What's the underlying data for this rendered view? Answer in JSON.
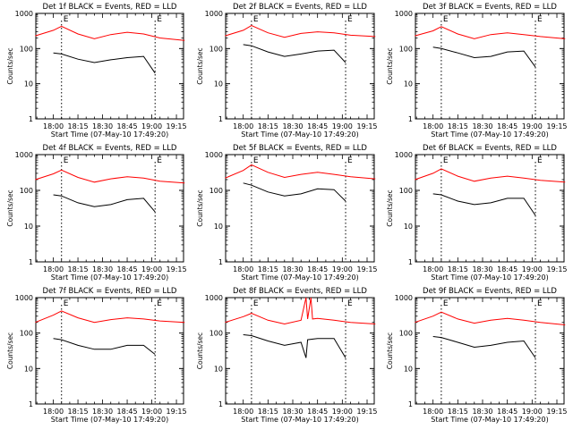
{
  "chart_data": [
    {
      "type": "line",
      "title": "Det 1f BLACK = Events, RED = LLD",
      "ylabel": "Counts/sec",
      "xlabel": "Start Time (07-May-10 17:49:20)",
      "x_ticks": [
        "18:00",
        "18:15",
        "18:30",
        "18:45",
        "19:00",
        "19:15"
      ],
      "y_ticks": [
        "1",
        "10",
        "100",
        "1000"
      ],
      "ylim": [
        1,
        1000
      ],
      "y_scale": "log",
      "grid": false,
      "markers": {
        "start_label": "E",
        "end_label": "E",
        "start_time": "18:05",
        "end_time": "19:02"
      },
      "series": [
        {
          "color": "#ff0000",
          "x": [
            "17:49",
            "18:00",
            "18:05",
            "18:15",
            "18:25",
            "18:35",
            "18:45",
            "18:55",
            "19:05",
            "19:20"
          ],
          "values": [
            230,
            330,
            430,
            260,
            190,
            250,
            290,
            260,
            200,
            170
          ]
        },
        {
          "color": "#000000",
          "x": [
            "18:00",
            "18:05",
            "18:15",
            "18:25",
            "18:35",
            "18:45",
            "18:55",
            "19:02"
          ],
          "values": [
            75,
            70,
            50,
            40,
            48,
            55,
            60,
            20
          ]
        }
      ]
    },
    {
      "type": "line",
      "title": "Det 2f BLACK = Events, RED = LLD",
      "ylabel": "Counts/sec",
      "xlabel": "Start Time (07-May-10 17:49:20)",
      "x_ticks": [
        "18:00",
        "18:15",
        "18:30",
        "18:45",
        "19:00",
        "19:15"
      ],
      "y_ticks": [
        "1",
        "10",
        "100",
        "1000"
      ],
      "ylim": [
        1,
        1000
      ],
      "y_scale": "log",
      "grid": false,
      "markers": {
        "start_label": "E",
        "end_label": "E",
        "start_time": "18:05",
        "end_time": "19:02"
      },
      "series": [
        {
          "color": "#ff0000",
          "x": [
            "17:49",
            "18:00",
            "18:05",
            "18:15",
            "18:25",
            "18:35",
            "18:45",
            "18:55",
            "19:05",
            "19:20"
          ],
          "values": [
            230,
            330,
            450,
            280,
            210,
            270,
            300,
            280,
            240,
            220
          ]
        },
        {
          "color": "#000000",
          "x": [
            "18:00",
            "18:05",
            "18:15",
            "18:25",
            "18:35",
            "18:45",
            "18:55",
            "19:02"
          ],
          "values": [
            130,
            120,
            80,
            60,
            70,
            85,
            90,
            40
          ]
        }
      ]
    },
    {
      "type": "line",
      "title": "Det 3f BLACK = Events, RED = LLD",
      "ylabel": "Counts/sec",
      "xlabel": "Start Time (07-May-10 17:49:20)",
      "x_ticks": [
        "18:00",
        "18:15",
        "18:30",
        "18:45",
        "19:00",
        "19:15"
      ],
      "y_ticks": [
        "1",
        "10",
        "100",
        "1000"
      ],
      "ylim": [
        1,
        1000
      ],
      "y_scale": "log",
      "grid": false,
      "markers": {
        "start_label": "E",
        "end_label": "E",
        "start_time": "18:05",
        "end_time": "19:02"
      },
      "series": [
        {
          "color": "#ff0000",
          "x": [
            "17:49",
            "18:00",
            "18:05",
            "18:15",
            "18:25",
            "18:35",
            "18:45",
            "18:55",
            "19:05",
            "19:20"
          ],
          "values": [
            230,
            320,
            420,
            260,
            190,
            250,
            280,
            250,
            220,
            190
          ]
        },
        {
          "color": "#000000",
          "x": [
            "18:00",
            "18:05",
            "18:15",
            "18:25",
            "18:35",
            "18:45",
            "18:55",
            "19:02"
          ],
          "values": [
            110,
            100,
            75,
            55,
            60,
            80,
            85,
            30
          ]
        }
      ]
    },
    {
      "type": "line",
      "title": "Det 4f BLACK = Events, RED = LLD",
      "ylabel": "Counts/sec",
      "xlabel": "Start Time (07-May-10 17:49:20)",
      "x_ticks": [
        "18:00",
        "18:15",
        "18:30",
        "18:45",
        "19:00",
        "19:15"
      ],
      "y_ticks": [
        "1",
        "10",
        "100",
        "1000"
      ],
      "ylim": [
        1,
        1000
      ],
      "y_scale": "log",
      "grid": false,
      "markers": {
        "start_label": "E",
        "end_label": "E",
        "start_time": "18:05",
        "end_time": "19:02"
      },
      "series": [
        {
          "color": "#ff0000",
          "x": [
            "17:49",
            "18:00",
            "18:05",
            "18:15",
            "18:25",
            "18:35",
            "18:45",
            "18:55",
            "19:05",
            "19:20"
          ],
          "values": [
            200,
            290,
            370,
            230,
            170,
            210,
            240,
            220,
            180,
            160
          ]
        },
        {
          "color": "#000000",
          "x": [
            "18:00",
            "18:05",
            "18:15",
            "18:25",
            "18:35",
            "18:45",
            "18:55",
            "19:02"
          ],
          "values": [
            75,
            70,
            45,
            35,
            40,
            55,
            60,
            25
          ]
        }
      ]
    },
    {
      "type": "line",
      "title": "Det 5f BLACK = Events, RED = LLD",
      "ylabel": "Counts/sec",
      "xlabel": "Start Time (07-May-10 17:49:20)",
      "x_ticks": [
        "18:00",
        "18:15",
        "18:30",
        "18:45",
        "19:00",
        "19:15"
      ],
      "y_ticks": [
        "1",
        "10",
        "100",
        "1000"
      ],
      "ylim": [
        1,
        1000
      ],
      "y_scale": "log",
      "grid": false,
      "markers": {
        "start_label": "E",
        "end_label": "E",
        "start_time": "18:05",
        "end_time": "19:02"
      },
      "series": [
        {
          "color": "#ff0000",
          "x": [
            "17:49",
            "18:00",
            "18:05",
            "18:15",
            "18:25",
            "18:35",
            "18:45",
            "18:55",
            "19:05",
            "19:20"
          ],
          "values": [
            220,
            360,
            520,
            320,
            230,
            280,
            320,
            280,
            240,
            210
          ]
        },
        {
          "color": "#000000",
          "x": [
            "18:00",
            "18:05",
            "18:15",
            "18:25",
            "18:35",
            "18:45",
            "18:55",
            "19:02"
          ],
          "values": [
            160,
            140,
            90,
            70,
            80,
            110,
            105,
            50
          ]
        }
      ]
    },
    {
      "type": "line",
      "title": "Det 6f BLACK = Events, RED = LLD",
      "ylabel": "Counts/sec",
      "xlabel": "Start Time (07-May-10 17:49:20)",
      "x_ticks": [
        "18:00",
        "18:15",
        "18:30",
        "18:45",
        "19:00",
        "19:15"
      ],
      "y_ticks": [
        "1",
        "10",
        "100",
        "1000"
      ],
      "ylim": [
        1,
        1000
      ],
      "y_scale": "log",
      "grid": false,
      "markers": {
        "start_label": "E",
        "end_label": "E",
        "start_time": "18:05",
        "end_time": "19:02"
      },
      "series": [
        {
          "color": "#ff0000",
          "x": [
            "17:49",
            "18:00",
            "18:05",
            "18:15",
            "18:25",
            "18:35",
            "18:45",
            "18:55",
            "19:05",
            "19:20"
          ],
          "values": [
            200,
            300,
            400,
            250,
            180,
            220,
            250,
            220,
            190,
            170
          ]
        },
        {
          "color": "#000000",
          "x": [
            "18:00",
            "18:05",
            "18:15",
            "18:25",
            "18:35",
            "18:45",
            "18:55",
            "19:02"
          ],
          "values": [
            80,
            75,
            50,
            40,
            45,
            60,
            60,
            20
          ]
        }
      ]
    },
    {
      "type": "line",
      "title": "Det 7f BLACK = Events, RED = LLD",
      "ylabel": "Counts/sec",
      "xlabel": "Start Time (07-May-10 17:49:20)",
      "x_ticks": [
        "18:00",
        "18:15",
        "18:30",
        "18:45",
        "19:00",
        "19:15"
      ],
      "y_ticks": [
        "1",
        "10",
        "100",
        "1000"
      ],
      "ylim": [
        1,
        1000
      ],
      "y_scale": "log",
      "grid": false,
      "markers": {
        "start_label": "E",
        "end_label": "E",
        "start_time": "18:05",
        "end_time": "19:02"
      },
      "series": [
        {
          "color": "#ff0000",
          "x": [
            "17:49",
            "18:00",
            "18:05",
            "18:15",
            "18:25",
            "18:35",
            "18:45",
            "18:55",
            "19:05",
            "19:20"
          ],
          "values": [
            200,
            320,
            420,
            270,
            200,
            240,
            270,
            250,
            220,
            200
          ]
        },
        {
          "color": "#000000",
          "x": [
            "18:00",
            "18:05",
            "18:15",
            "18:25",
            "18:35",
            "18:45",
            "18:55",
            "19:02"
          ],
          "values": [
            70,
            65,
            45,
            35,
            35,
            45,
            45,
            25
          ]
        }
      ]
    },
    {
      "type": "line",
      "title": "Det 8f BLACK = Events, RED = LLD",
      "ylabel": "Counts/sec",
      "xlabel": "Start Time (07-May-10 17:49:20)",
      "x_ticks": [
        "18:00",
        "18:15",
        "18:30",
        "18:45",
        "19:00",
        "19:15"
      ],
      "y_ticks": [
        "1",
        "10",
        "100",
        "1000"
      ],
      "ylim": [
        1,
        1000
      ],
      "y_scale": "log",
      "grid": false,
      "markers": {
        "start_label": "E",
        "end_label": "E",
        "start_time": "18:05",
        "end_time": "19:02"
      },
      "series": [
        {
          "color": "#ff0000",
          "x": [
            "17:49",
            "18:00",
            "18:05",
            "18:15",
            "18:25",
            "18:35",
            "18:38",
            "18:39",
            "18:41",
            "18:42",
            "18:45",
            "18:55",
            "19:05",
            "19:20"
          ],
          "values": [
            200,
            290,
            360,
            230,
            180,
            230,
            1000,
            250,
            1000,
            250,
            260,
            230,
            200,
            180
          ]
        },
        {
          "color": "#000000",
          "x": [
            "18:00",
            "18:05",
            "18:15",
            "18:25",
            "18:35",
            "18:38",
            "18:39",
            "18:45",
            "18:55",
            "19:02"
          ],
          "values": [
            90,
            85,
            60,
            45,
            55,
            20,
            65,
            70,
            70,
            20
          ]
        }
      ]
    },
    {
      "type": "line",
      "title": "Det 9f BLACK = Events, RED = LLD",
      "ylabel": "Counts/sec",
      "xlabel": "Start Time (07-May-10 17:49:20)",
      "x_ticks": [
        "18:00",
        "18:15",
        "18:30",
        "18:45",
        "19:00",
        "19:15"
      ],
      "y_ticks": [
        "1",
        "10",
        "100",
        "1000"
      ],
      "ylim": [
        1,
        1000
      ],
      "y_scale": "log",
      "grid": false,
      "markers": {
        "start_label": "E",
        "end_label": "E",
        "start_time": "18:05",
        "end_time": "19:02"
      },
      "series": [
        {
          "color": "#ff0000",
          "x": [
            "17:49",
            "18:00",
            "18:05",
            "18:15",
            "18:25",
            "18:35",
            "18:45",
            "18:55",
            "19:05",
            "19:20"
          ],
          "values": [
            200,
            300,
            390,
            250,
            190,
            230,
            260,
            230,
            200,
            170
          ]
        },
        {
          "color": "#000000",
          "x": [
            "18:00",
            "18:05",
            "18:15",
            "18:25",
            "18:35",
            "18:45",
            "18:55",
            "19:02"
          ],
          "values": [
            80,
            75,
            55,
            40,
            45,
            55,
            60,
            20
          ]
        }
      ]
    }
  ]
}
